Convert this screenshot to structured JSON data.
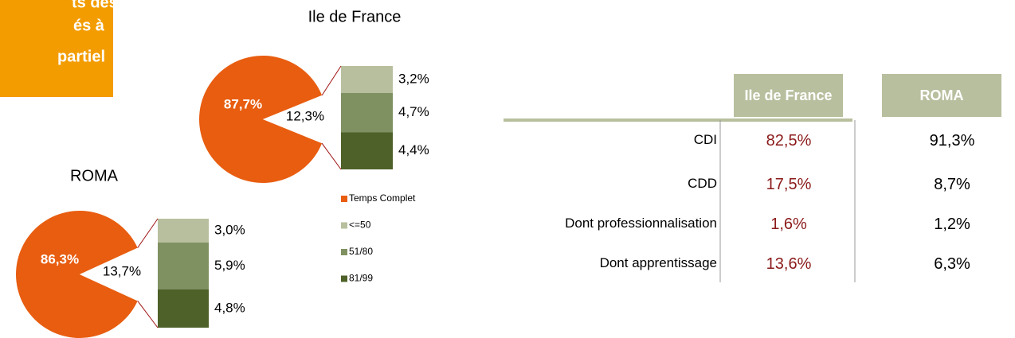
{
  "header": {
    "lines": [
      "ts des",
      "és à",
      "partiel"
    ]
  },
  "legend": {
    "names": [
      "Temps Complet",
      "<=50",
      "51/80",
      "81/99"
    ],
    "colors": [
      "#e85d10",
      "#b8bf9e",
      "#7f9161",
      "#4e6128"
    ]
  },
  "chart_data": [
    {
      "type": "pie",
      "title": "Ile de France",
      "values": [
        87.7,
        12.3
      ],
      "value_labels": [
        "87,7%",
        "12,3%"
      ],
      "breakdown": {
        "values": [
          3.2,
          4.7,
          4.4
        ],
        "value_labels": [
          "3,2%",
          "4,7%",
          "4,4%"
        ]
      }
    },
    {
      "type": "pie",
      "title": "ROMA",
      "values": [
        86.3,
        13.7
      ],
      "value_labels": [
        "86,3%",
        "13,7%"
      ],
      "breakdown": {
        "values": [
          3.0,
          5.9,
          4.8
        ],
        "value_labels": [
          "3,0%",
          "5,9%",
          "4,8%"
        ]
      }
    }
  ],
  "table": {
    "columns": [
      "Ile de France",
      "ROMA"
    ],
    "rows": [
      [
        "CDI",
        "82,5%",
        "91,3%"
      ],
      [
        "CDD",
        "17,5%",
        "8,7%"
      ],
      [
        "Dont professionnalisation",
        "1,6%",
        "1,2%"
      ],
      [
        "Dont apprentissage",
        "13,6%",
        "6,3%"
      ]
    ]
  }
}
